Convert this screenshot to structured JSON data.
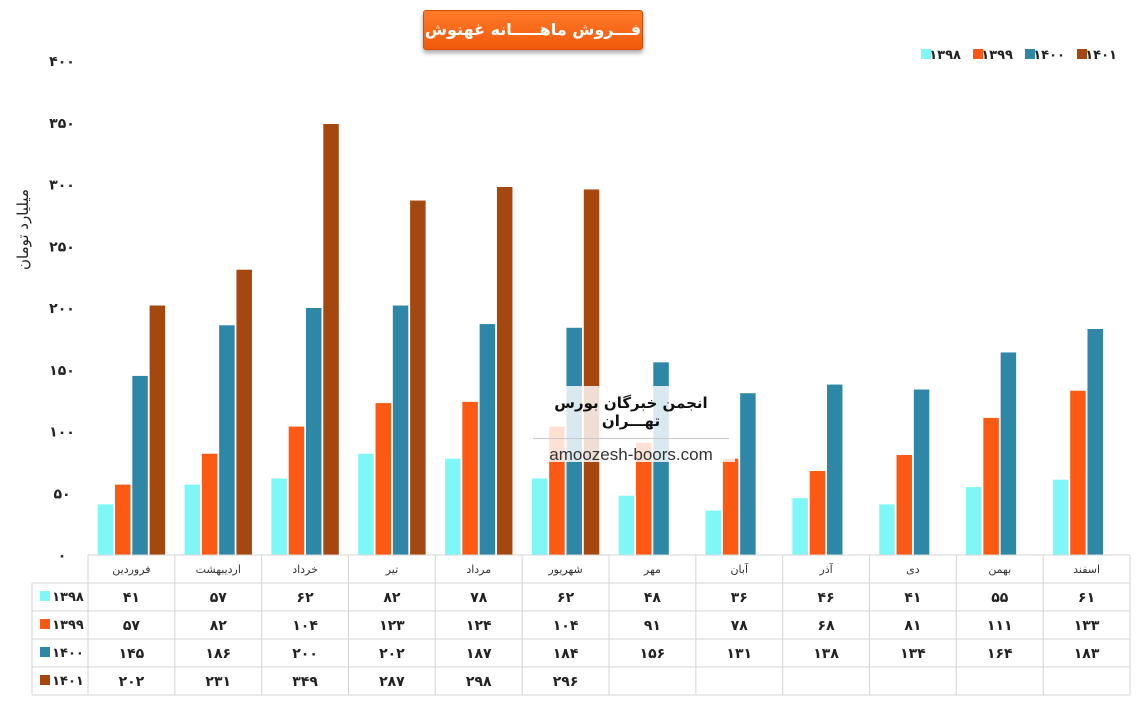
{
  "chart_data": {
    "type": "bar",
    "title": "فـــروش ماهـــــانه غهنوش",
    "ylabel": "میلیارد تومان",
    "xlabel": "",
    "ylim": [
      0,
      400
    ],
    "yticks": [
      0,
      50,
      100,
      150,
      200,
      250,
      300,
      350,
      400
    ],
    "ytick_labels": [
      "۰",
      "۵۰",
      "۱۰۰",
      "۱۵۰",
      "۲۰۰",
      "۲۵۰",
      "۳۰۰",
      "۳۵۰",
      "۴۰۰"
    ],
    "legend_position": "top-right",
    "categories": [
      "فروردین",
      "اردیبهشت",
      "خرداد",
      "تیر",
      "مرداد",
      "شهریور",
      "مهر",
      "آبان",
      "آذر",
      "دی",
      "بهمن",
      "اسفند"
    ],
    "series": [
      {
        "name": "۱۳۹۸",
        "color": "#7ff7f7",
        "values": [
          41,
          57,
          62,
          82,
          78,
          62,
          48,
          36,
          46,
          41,
          55,
          61
        ],
        "labels": [
          "۴۱",
          "۵۷",
          "۶۲",
          "۸۲",
          "۷۸",
          "۶۲",
          "۴۸",
          "۳۶",
          "۴۶",
          "۴۱",
          "۵۵",
          "۶۱"
        ]
      },
      {
        "name": "۱۳۹۹",
        "color": "#fc5a14",
        "values": [
          57,
          82,
          104,
          123,
          124,
          104,
          91,
          78,
          68,
          81,
          111,
          133
        ],
        "labels": [
          "۵۷",
          "۸۲",
          "۱۰۴",
          "۱۲۳",
          "۱۲۴",
          "۱۰۴",
          "۹۱",
          "۷۸",
          "۶۸",
          "۸۱",
          "۱۱۱",
          "۱۳۳"
        ]
      },
      {
        "name": "۱۴۰۰",
        "color": "#2e87a6",
        "values": [
          145,
          186,
          200,
          202,
          187,
          184,
          156,
          131,
          138,
          134,
          164,
          183
        ],
        "labels": [
          "۱۴۵",
          "۱۸۶",
          "۲۰۰",
          "۲۰۲",
          "۱۸۷",
          "۱۸۴",
          "۱۵۶",
          "۱۳۱",
          "۱۳۸",
          "۱۳۴",
          "۱۶۴",
          "۱۸۳"
        ]
      },
      {
        "name": "۱۴۰۱",
        "color": "#a4480f",
        "values": [
          202,
          231,
          349,
          287,
          298,
          296,
          null,
          null,
          null,
          null,
          null,
          null
        ],
        "labels": [
          "۲۰۲",
          "۲۳۱",
          "۳۴۹",
          "۲۸۷",
          "۲۹۸",
          "۲۹۶",
          "",
          "",
          "",
          "",
          "",
          ""
        ]
      }
    ]
  },
  "watermark": {
    "title": "انجمن خبرگان بورس تهـــران",
    "url": "amoozesh-boors.com"
  }
}
